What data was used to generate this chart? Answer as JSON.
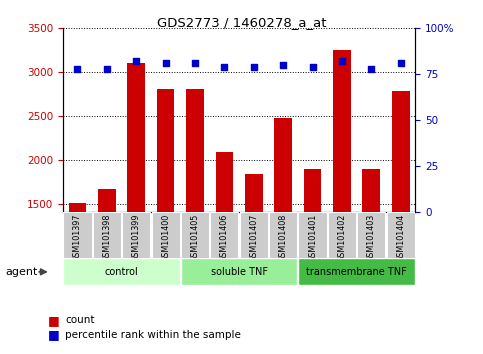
{
  "title": "GDS2773 / 1460278_a_at",
  "samples": [
    "GSM101397",
    "GSM101398",
    "GSM101399",
    "GSM101400",
    "GSM101405",
    "GSM101406",
    "GSM101407",
    "GSM101408",
    "GSM101401",
    "GSM101402",
    "GSM101403",
    "GSM101404"
  ],
  "counts": [
    1510,
    1665,
    3110,
    2810,
    2810,
    2090,
    1840,
    2480,
    1900,
    3250,
    1900,
    2790
  ],
  "percentiles": [
    78,
    78,
    82,
    81,
    81,
    79,
    79,
    80,
    79,
    82,
    78,
    81
  ],
  "ylim_left": [
    1400,
    3500
  ],
  "ylim_right": [
    0,
    100
  ],
  "yticks_left": [
    1500,
    2000,
    2500,
    3000,
    3500
  ],
  "yticks_right": [
    0,
    25,
    50,
    75,
    100
  ],
  "groups": [
    {
      "label": "control",
      "start": 0,
      "end": 4,
      "color": "#ccffcc"
    },
    {
      "label": "soluble TNF",
      "start": 4,
      "end": 8,
      "color": "#aaffaa"
    },
    {
      "label": "transmembrane TNF",
      "start": 8,
      "end": 12,
      "color": "#44cc44"
    }
  ],
  "bar_color": "#cc0000",
  "dot_color": "#0000cc",
  "agent_label": "agent",
  "legend_count_label": "count",
  "legend_pct_label": "percentile rank within the sample",
  "tick_label_color_left": "#cc0000",
  "tick_label_color_right": "#0000cc",
  "sample_box_color": "#cccccc",
  "group_colors": [
    "#ccffcc",
    "#99ee99",
    "#44bb44"
  ]
}
